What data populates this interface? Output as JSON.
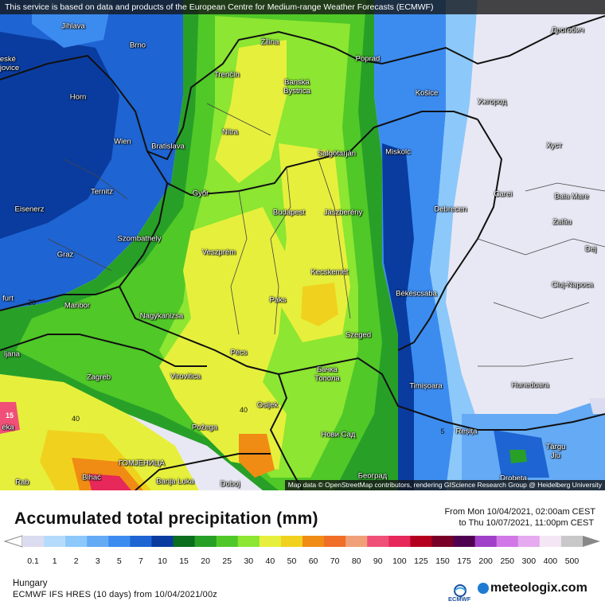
{
  "banner_text": "This service is based on data and products of the European Centre for Medium-range Weather Forecasts (ECMWF)",
  "attribution": "Map data © OpenStreetMap contributors, rendering GIScience Research Group @ Heidelberg University",
  "title": "Accumulated total precipitation (mm)",
  "period_from": "From Mon 10/04/2021, 02:00am CEST",
  "period_to": "to Thu 10/07/2021, 11:00pm CEST",
  "region": "Hungary",
  "model_info": "ECMWF IFS HRES (10 days) from 10/04/2021/00z",
  "brand": "meteologix.com",
  "ecmwf_logo_text": "ECMWF",
  "colorbar": {
    "labels": [
      "0.1",
      "1",
      "2",
      "3",
      "5",
      "7",
      "10",
      "15",
      "20",
      "25",
      "30",
      "40",
      "50",
      "60",
      "70",
      "80",
      "90",
      "100",
      "125",
      "150",
      "175",
      "200",
      "250",
      "300",
      "400",
      "500"
    ],
    "colors": [
      "#dcdcf0",
      "#b4dcfa",
      "#8cc8fa",
      "#64aaf5",
      "#3c8cf0",
      "#1e64d2",
      "#0a3ca0",
      "#0a6e1e",
      "#28a028",
      "#50c828",
      "#8ce632",
      "#e6f03c",
      "#f0d21e",
      "#f08c14",
      "#f06e28",
      "#f0a078",
      "#f05078",
      "#e6285a",
      "#b4001e",
      "#780028",
      "#500050",
      "#a040c8",
      "#d278e6",
      "#e6aaf0",
      "#f5e6f5",
      "#c8c8c8"
    ]
  },
  "cities": [
    {
      "name": "Jihlava"
    },
    {
      "name": "Brno"
    },
    {
      "name": "Žilina"
    },
    {
      "name": "Poprad"
    },
    {
      "name": "Дрогобич"
    },
    {
      "name": "eské\njovice"
    },
    {
      "name": "Trenčín"
    },
    {
      "name": "Banská\nBystrica"
    },
    {
      "name": "Košice"
    },
    {
      "name": "Horn"
    },
    {
      "name": "Ужгород"
    },
    {
      "name": "Nitra"
    },
    {
      "name": "Wien"
    },
    {
      "name": "Bratislava"
    },
    {
      "name": "Miskolc"
    },
    {
      "name": "Salgótarján"
    },
    {
      "name": "Хуст"
    },
    {
      "name": "Ternitz"
    },
    {
      "name": "Győr"
    },
    {
      "name": "Carei"
    },
    {
      "name": "Baia Mare"
    },
    {
      "name": "Budapest"
    },
    {
      "name": "Jászberény"
    },
    {
      "name": "Eisenerz"
    },
    {
      "name": "Debrecen"
    },
    {
      "name": "Szombathely"
    },
    {
      "name": "Zalău"
    },
    {
      "name": "Graz"
    },
    {
      "name": "Veszprém"
    },
    {
      "name": "Dej"
    },
    {
      "name": "Kecskemét"
    },
    {
      "name": "Cluj-Napoca"
    },
    {
      "name": "furt"
    },
    {
      "name": "Maribor"
    },
    {
      "name": "Paks"
    },
    {
      "name": "Békéscsaba"
    },
    {
      "name": "Nagykanizsa"
    },
    {
      "name": "Szeged"
    },
    {
      "name": "ljana"
    },
    {
      "name": "Pécs"
    },
    {
      "name": "Zagreb"
    },
    {
      "name": "Virovitica"
    },
    {
      "name": "Бачка\nТопола"
    },
    {
      "name": "Hunedoara"
    },
    {
      "name": "Timișoara"
    },
    {
      "name": "Osijek"
    },
    {
      "name": "Požega"
    },
    {
      "name": "Нови Сад"
    },
    {
      "name": "Reșița"
    },
    {
      "name": "Târgu\nJiu"
    },
    {
      "name": "ГОМЈЕНИЦА"
    },
    {
      "name": "Bihać"
    },
    {
      "name": "Banja Luka"
    },
    {
      "name": "Doboj"
    },
    {
      "name": "Београд"
    },
    {
      "name": "Drobeta"
    },
    {
      "name": "Rab"
    },
    {
      "name": "eka"
    }
  ],
  "contour_labels": [
    {
      "text": "20"
    },
    {
      "text": "40"
    },
    {
      "text": "40"
    },
    {
      "text": "5"
    },
    {
      "text": "15"
    }
  ]
}
